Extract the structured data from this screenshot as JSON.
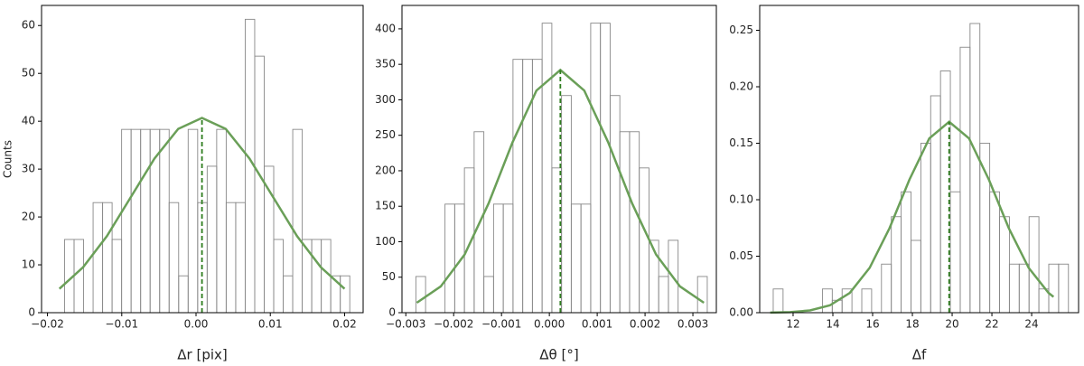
{
  "chart_data": [
    {
      "type": "histogram",
      "xlabel": "Δr [pix]",
      "ylabel": "Counts",
      "bins": [
        -0.0177,
        -0.01642,
        -0.01514,
        -0.01386,
        -0.01258,
        -0.0113,
        -0.01002,
        -0.00874,
        -0.00746,
        -0.00618,
        -0.0049,
        -0.00362,
        -0.00234,
        -0.00106,
        0.00022,
        0.0015,
        0.00278,
        0.00406,
        0.00534,
        0.00662,
        0.0079,
        0.00918,
        0.01046,
        0.01174,
        0.01302,
        0.0143,
        0.01558,
        0.01686,
        0.01814,
        0.01942,
        0.0207
      ],
      "values": [
        15.3,
        15.3,
        0,
        23,
        23,
        15.3,
        38.3,
        38.3,
        38.3,
        38.3,
        38.3,
        23,
        7.7,
        38.3,
        23,
        30.6,
        38.3,
        23,
        23,
        61.3,
        53.6,
        30.6,
        15.3,
        7.7,
        38.3,
        15.3,
        15.3,
        15.3,
        7.7,
        7.7
      ],
      "color": "#888888",
      "fit": {
        "x": [
          -0.0184,
          -0.0152,
          -0.012,
          -0.0088,
          -0.0056,
          -0.0024,
          0.0008,
          0.004,
          0.0072,
          0.0104,
          0.0136,
          0.0168,
          0.02
        ],
        "values": [
          5.0,
          9.5,
          16.0,
          24.1,
          32.2,
          38.4,
          40.7,
          38.4,
          32.2,
          24.1,
          16.0,
          9.5,
          5.0
        ],
        "color": "#6a9f58"
      },
      "mean_line": {
        "x": 0.0008,
        "y": 40.7,
        "color": "#2e7d1e"
      },
      "xlim": [
        -0.0208,
        0.0225
      ],
      "ylim": [
        0,
        64.2
      ],
      "xticks": [
        {
          "value": -0.02,
          "label": "−0.02"
        },
        {
          "value": -0.01,
          "label": "−0.01"
        },
        {
          "value": 0,
          "label": "0.00"
        },
        {
          "value": 0.01,
          "label": "0.01"
        },
        {
          "value": 0.02,
          "label": "0.02"
        }
      ],
      "yticks": [
        0,
        10,
        20,
        30,
        40,
        50,
        60
      ]
    },
    {
      "type": "histogram",
      "xlabel": "Δθ [°]",
      "bins": [
        -0.00279,
        -0.002587,
        -0.002384,
        -0.002181,
        -0.001978,
        -0.001775,
        -0.001572,
        -0.001369,
        -0.001166,
        -0.000963,
        -0.00076,
        -0.000557,
        -0.000354,
        -0.000151,
        5.2e-05,
        0.000255,
        0.000458,
        0.000661,
        0.000864,
        0.001067,
        0.00127,
        0.001473,
        0.001676,
        0.001879,
        0.002082,
        0.002285,
        0.002488,
        0.002691,
        0.002894,
        0.003097,
        0.0033
      ],
      "values": [
        51,
        0,
        0,
        153,
        153,
        204,
        255,
        51,
        153,
        153,
        357,
        357,
        357,
        408,
        204,
        306,
        153,
        153,
        408,
        408,
        306,
        255,
        255,
        204,
        102,
        51,
        102,
        0,
        0,
        51
      ],
      "color": "#888888",
      "fit": {
        "x": [
          -0.00277,
          -0.00227,
          -0.00177,
          -0.00127,
          -0.00077,
          -0.00027,
          0.00023,
          0.00073,
          0.00123,
          0.00173,
          0.00223,
          0.00273,
          0.00323
        ],
        "values": [
          14,
          37,
          82,
          154,
          240,
          313,
          342,
          313,
          240,
          154,
          82,
          37,
          14
        ],
        "color": "#6a9f58"
      },
      "mean_line": {
        "x": 0.00023,
        "y": 342,
        "color": "#2e7d1e"
      },
      "xlim": [
        -0.00308,
        0.00349
      ],
      "ylim": [
        0,
        433
      ],
      "xticks": [
        {
          "value": -0.003,
          "label": "−0.003"
        },
        {
          "value": -0.002,
          "label": "−0.002"
        },
        {
          "value": -0.001,
          "label": "−0.001"
        },
        {
          "value": 0,
          "label": "0.000"
        },
        {
          "value": 0.001,
          "label": "0.001"
        },
        {
          "value": 0.002,
          "label": "0.002"
        },
        {
          "value": 0.003,
          "label": "0.003"
        }
      ],
      "yticks": [
        0,
        50,
        100,
        150,
        200,
        250,
        300,
        350,
        400
      ]
    },
    {
      "type": "histogram",
      "xlabel": "Δf",
      "bins": [
        11.0,
        11.495,
        11.99,
        12.485,
        12.98,
        13.475,
        13.97,
        14.465,
        14.96,
        15.455,
        15.95,
        16.445,
        16.94,
        17.435,
        17.93,
        18.425,
        18.92,
        19.415,
        19.91,
        20.405,
        20.9,
        21.395,
        21.89,
        22.385,
        22.88,
        23.375,
        23.87,
        24.365,
        24.86,
        25.355,
        25.85
      ],
      "values": [
        0.021,
        0,
        0,
        0,
        0,
        0.021,
        0.011,
        0.021,
        0,
        0.021,
        0,
        0.043,
        0.085,
        0.107,
        0.064,
        0.15,
        0.192,
        0.214,
        0.107,
        0.235,
        0.256,
        0.15,
        0.107,
        0.085,
        0.043,
        0.043,
        0.085,
        0.021,
        0.043,
        0.043
      ],
      "color": "#888888",
      "fit": {
        "x": [
          10.85,
          11.85,
          12.85,
          13.85,
          14.85,
          15.85,
          16.85,
          17.85,
          18.85,
          19.85,
          20.85,
          21.85,
          22.85,
          23.85,
          24.85,
          25.1
        ],
        "values": [
          0.0001,
          0.0005,
          0.002,
          0.0065,
          0.0175,
          0.0397,
          0.0748,
          0.1177,
          0.1543,
          0.169,
          0.1543,
          0.1177,
          0.0748,
          0.0397,
          0.0175,
          0.014
        ],
        "color": "#6a9f58"
      },
      "mean_line": {
        "x": 19.85,
        "y": 0.169,
        "color": "#2e7d1e"
      },
      "xlim": [
        10.32,
        26.36
      ],
      "ylim": [
        0,
        0.272
      ],
      "xticks": [
        12,
        14,
        16,
        18,
        20,
        22,
        24
      ],
      "yticks": [
        {
          "value": 0,
          "label": "0.00"
        },
        {
          "value": 0.05,
          "label": "0.05"
        },
        {
          "value": 0.1,
          "label": "0.10"
        },
        {
          "value": 0.15,
          "label": "0.15"
        },
        {
          "value": 0.2,
          "label": "0.20"
        },
        {
          "value": 0.25,
          "label": "0.25"
        }
      ]
    }
  ]
}
